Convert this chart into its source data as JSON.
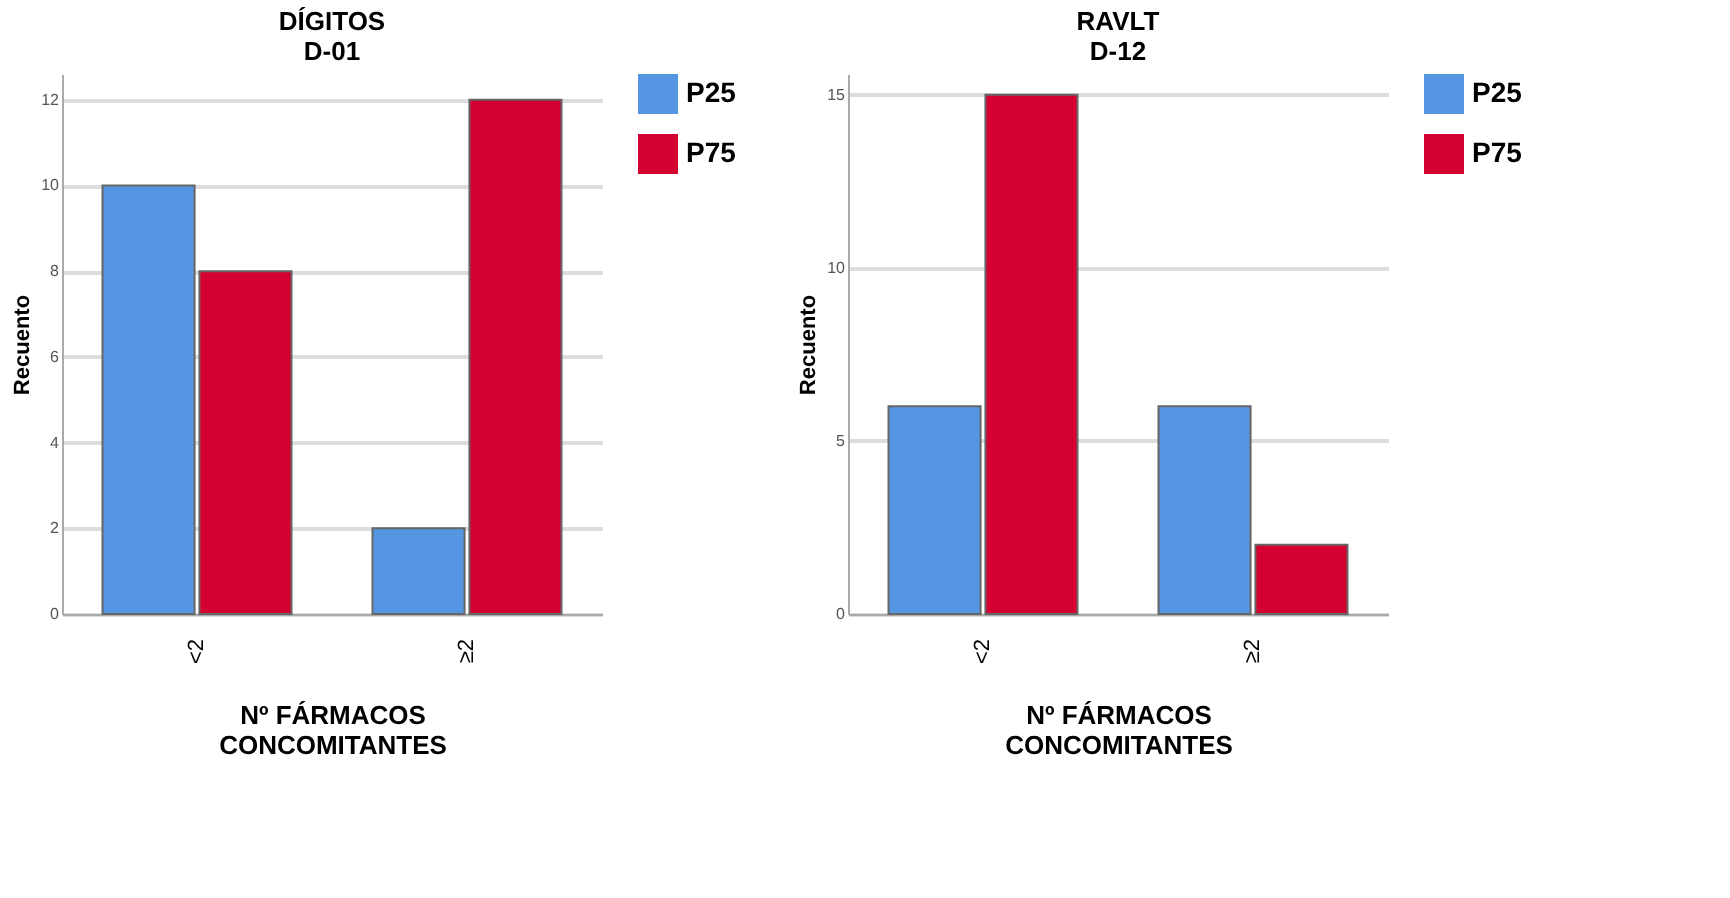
{
  "chart_data": [
    {
      "type": "bar",
      "title": "DÍGITOS\nD-01",
      "xlabel": "Nº FÁRMACOS\nCONCOMITANTES",
      "ylabel": "Recuento",
      "categories": [
        "<2",
        "≥2"
      ],
      "series": [
        {
          "name": "P25",
          "color": "#5596e3",
          "values": [
            10,
            2
          ]
        },
        {
          "name": "P75",
          "color": "#d50032",
          "values": [
            8,
            12
          ]
        }
      ],
      "ylim": [
        0,
        12.6
      ],
      "yticks": [
        0,
        2,
        4,
        6,
        8,
        10,
        12
      ],
      "grid": "y",
      "legend": "top right"
    },
    {
      "type": "bar",
      "title": "RAVLT\nD-12",
      "xlabel": "Nº FÁRMACOS\nCONCOMITANTES",
      "ylabel": "Recuento",
      "categories": [
        "<2",
        "≥2"
      ],
      "series": [
        {
          "name": "P25",
          "color": "#5596e3",
          "values": [
            6,
            6
          ]
        },
        {
          "name": "P75",
          "color": "#d50032",
          "values": [
            15,
            2
          ]
        }
      ],
      "ylim": [
        0,
        15.6
      ],
      "yticks": [
        0,
        5,
        10,
        15
      ],
      "grid": "y",
      "legend": "top right"
    }
  ]
}
